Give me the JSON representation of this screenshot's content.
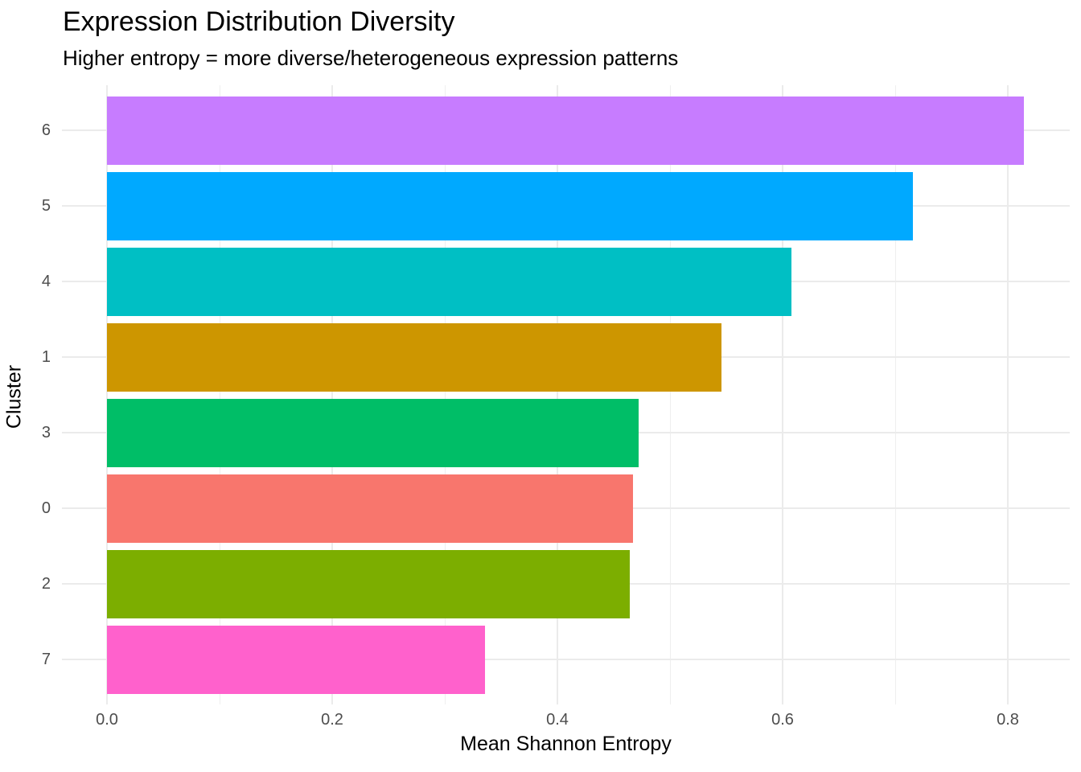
{
  "chart_data": {
    "type": "bar",
    "orientation": "horizontal",
    "title": "Expression Distribution Diversity",
    "subtitle": "Higher entropy = more diverse/heterogeneous expression patterns",
    "xlabel": "Mean Shannon Entropy",
    "ylabel": "Cluster",
    "categories": [
      "6",
      "5",
      "4",
      "1",
      "3",
      "0",
      "2",
      "7"
    ],
    "values": [
      0.814,
      0.716,
      0.608,
      0.546,
      0.472,
      0.467,
      0.464,
      0.336
    ],
    "bar_colors": [
      "#C77CFF",
      "#00A9FF",
      "#00BFC4",
      "#CD9600",
      "#00BE67",
      "#F8766D",
      "#7CAE00",
      "#FF61CC"
    ],
    "xlim": [
      -0.041,
      0.855
    ],
    "x_ticks": [
      0.0,
      0.2,
      0.4,
      0.6,
      0.8
    ],
    "x_tick_labels": [
      "0.0",
      "0.2",
      "0.4",
      "0.6",
      "0.8"
    ],
    "x_minor_ticks": [
      0.1,
      0.3,
      0.5,
      0.7
    ],
    "grid": true,
    "legend": "none",
    "sort": "descending"
  },
  "colors": {
    "background": "#FFFFFF",
    "panel_background": "#FFFFFF",
    "grid_major": "#EBEBEB",
    "grid_minor": "#EFEFEF",
    "axis_text": "#4D4D4D",
    "title_text": "#000000"
  }
}
